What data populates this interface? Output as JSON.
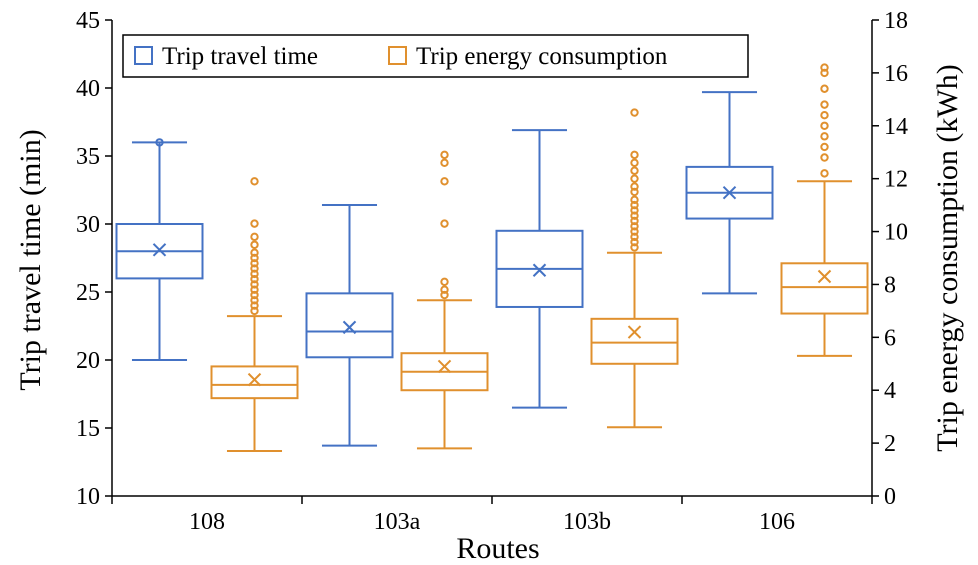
{
  "chart_data": {
    "type": "box",
    "xlabel": "Routes",
    "ylabel_left": "Trip travel time (min)",
    "ylabel_right": "Trip energy consumption  (kWh)",
    "categories": [
      "108",
      "103a",
      "103b",
      "106"
    ],
    "y_left": {
      "min": 10,
      "max": 45,
      "ticks": [
        "10",
        "15",
        "20",
        "25",
        "30",
        "35",
        "40",
        "45"
      ]
    },
    "y_right": {
      "min": 0,
      "max": 18,
      "ticks": [
        "0",
        "2",
        "4",
        "6",
        "8",
        "10",
        "12",
        "14",
        "16",
        "18"
      ]
    },
    "legend": {
      "position": "top-left",
      "items": [
        "Trip travel time",
        "Trip energy consumption"
      ]
    },
    "colors": {
      "travel_time": "#4472C4",
      "energy": "#E0902E"
    },
    "series": [
      {
        "name": "Trip travel time",
        "axis": "left",
        "boxes": [
          {
            "category": "108",
            "whisker_low": 20.0,
            "q1": 26.0,
            "median": 28.0,
            "q3": 30.0,
            "whisker_high": 36.0,
            "mean": 28.1,
            "outliers": [
              36.0
            ]
          },
          {
            "category": "103a",
            "whisker_low": 13.7,
            "q1": 20.2,
            "median": 22.1,
            "q3": 24.9,
            "whisker_high": 31.4,
            "mean": 22.4,
            "outliers": []
          },
          {
            "category": "103b",
            "whisker_low": 16.5,
            "q1": 23.9,
            "median": 26.7,
            "q3": 29.5,
            "whisker_high": 36.9,
            "mean": 26.6,
            "outliers": []
          },
          {
            "category": "106",
            "whisker_low": 24.9,
            "q1": 30.4,
            "median": 32.3,
            "q3": 34.2,
            "whisker_high": 39.7,
            "mean": 32.3,
            "outliers": []
          }
        ]
      },
      {
        "name": "Trip energy consumption",
        "axis": "right",
        "boxes": [
          {
            "category": "108",
            "whisker_low": 1.7,
            "q1": 3.7,
            "median": 4.2,
            "q3": 4.9,
            "whisker_high": 6.8,
            "mean": 4.4,
            "outliers": [
              7.0,
              7.2,
              7.4,
              7.6,
              7.8,
              8.0,
              8.2,
              8.4,
              8.6,
              8.8,
              9.0,
              9.2,
              9.5,
              9.8,
              10.3,
              11.9
            ]
          },
          {
            "category": "103a",
            "whisker_low": 1.8,
            "q1": 4.0,
            "median": 4.7,
            "q3": 5.4,
            "whisker_high": 7.4,
            "mean": 4.9,
            "outliers": [
              7.6,
              7.8,
              8.1,
              10.3,
              11.9,
              12.6,
              12.9
            ]
          },
          {
            "category": "103b",
            "whisker_low": 2.6,
            "q1": 5.0,
            "median": 5.8,
            "q3": 6.7,
            "whisker_high": 9.2,
            "mean": 6.2,
            "outliers": [
              9.4,
              9.6,
              9.8,
              10.0,
              10.2,
              10.4,
              10.6,
              10.8,
              11.0,
              11.2,
              11.5,
              11.7,
              12.0,
              12.3,
              12.6,
              12.9,
              14.5
            ]
          },
          {
            "category": "106",
            "whisker_low": 5.3,
            "q1": 6.9,
            "median": 7.9,
            "q3": 8.8,
            "whisker_high": 11.9,
            "mean": 8.3,
            "outliers": [
              12.2,
              12.8,
              13.2,
              13.6,
              14.0,
              14.4,
              14.8,
              15.4,
              16.0,
              16.2
            ]
          }
        ]
      }
    ]
  }
}
